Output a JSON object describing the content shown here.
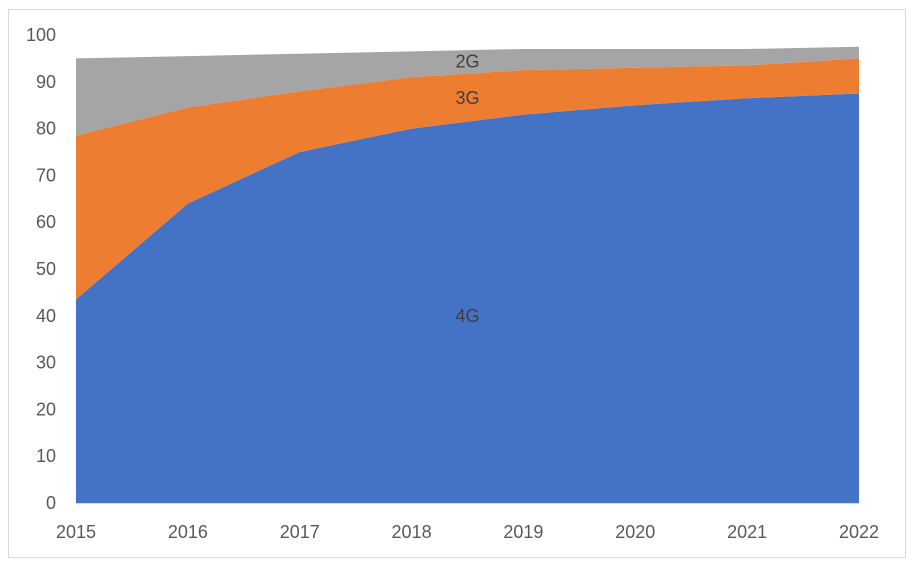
{
  "chart_data": {
    "type": "area",
    "stacked": true,
    "x": [
      "2015",
      "2016",
      "2017",
      "2018",
      "2019",
      "2020",
      "2021",
      "2022"
    ],
    "ylim": [
      0,
      100
    ],
    "yticks": [
      "0",
      "10",
      "20",
      "30",
      "40",
      "50",
      "60",
      "70",
      "80",
      "90",
      "100"
    ],
    "grid": false,
    "legend": "none",
    "series": [
      {
        "name": "4G",
        "color": "#4472C4",
        "values": [
          43.5,
          64.0,
          75.0,
          80.0,
          83.0,
          85.0,
          86.5,
          87.5
        ]
      },
      {
        "name": "3G",
        "color": "#ED7D31",
        "values": [
          35.0,
          20.5,
          13.0,
          11.0,
          9.5,
          8.0,
          7.0,
          7.5
        ]
      },
      {
        "name": "2G",
        "color": "#A5A5A5",
        "values": [
          16.5,
          11.0,
          8.0,
          5.5,
          4.5,
          4.0,
          3.5,
          2.5
        ]
      }
    ],
    "series_labels": [
      {
        "text": "4G",
        "x_pos": 3.5,
        "y_pos": 40
      },
      {
        "text": "3G",
        "x_pos": 3.5,
        "y_pos": 86.5
      },
      {
        "text": "2G",
        "x_pos": 3.5,
        "y_pos": 94.3
      }
    ]
  }
}
